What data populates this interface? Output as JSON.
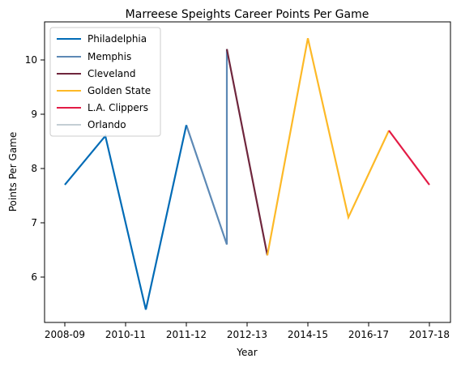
{
  "chart_data": {
    "type": "line",
    "title": "Marreese Speights Career Points Per Game",
    "xlabel": "Year",
    "ylabel": "Points Per Game",
    "x_ticks": [
      "2008-09",
      "2010-11",
      "2011-12",
      "2012-13",
      "2014-15",
      "2016-17",
      "2017-18"
    ],
    "y_ticks": [
      "6",
      "7",
      "8",
      "9",
      "10"
    ],
    "ylim": [
      5.15,
      10.65
    ],
    "xlim": [
      -0.45,
      9.45
    ],
    "grid": false,
    "legend_placement": "top-left",
    "series": [
      {
        "name": "Philadelphia",
        "color": "#006BB6",
        "points": [
          [
            0,
            7.7
          ],
          [
            1,
            8.6
          ],
          [
            2,
            5.4
          ]
        ]
      },
      {
        "name": "Memphis",
        "color": "#5D89B5",
        "points": [
          [
            3,
            8.8
          ],
          [
            4,
            6.6
          ],
          [
            4,
            10.2
          ]
        ]
      },
      {
        "name": "Cleveland",
        "color": "#6F263D",
        "points": [
          [
            4,
            10.2
          ],
          [
            5,
            6.4
          ]
        ]
      },
      {
        "name": "Golden State",
        "color": "#FDB927",
        "points": [
          [
            5,
            6.4
          ],
          [
            6,
            10.4
          ],
          [
            7,
            7.1
          ],
          [
            8,
            8.7
          ]
        ]
      },
      {
        "name": "L.A. Clippers",
        "color": "#E31B45",
        "points": [
          [
            8,
            8.7
          ],
          [
            9,
            7.7
          ]
        ]
      },
      {
        "name": "Orlando",
        "color": "#C4CED4",
        "points": []
      }
    ],
    "connector": {
      "color": "#006BB6",
      "points": [
        [
          2,
          5.4
        ],
        [
          3,
          8.8
        ]
      ]
    }
  }
}
